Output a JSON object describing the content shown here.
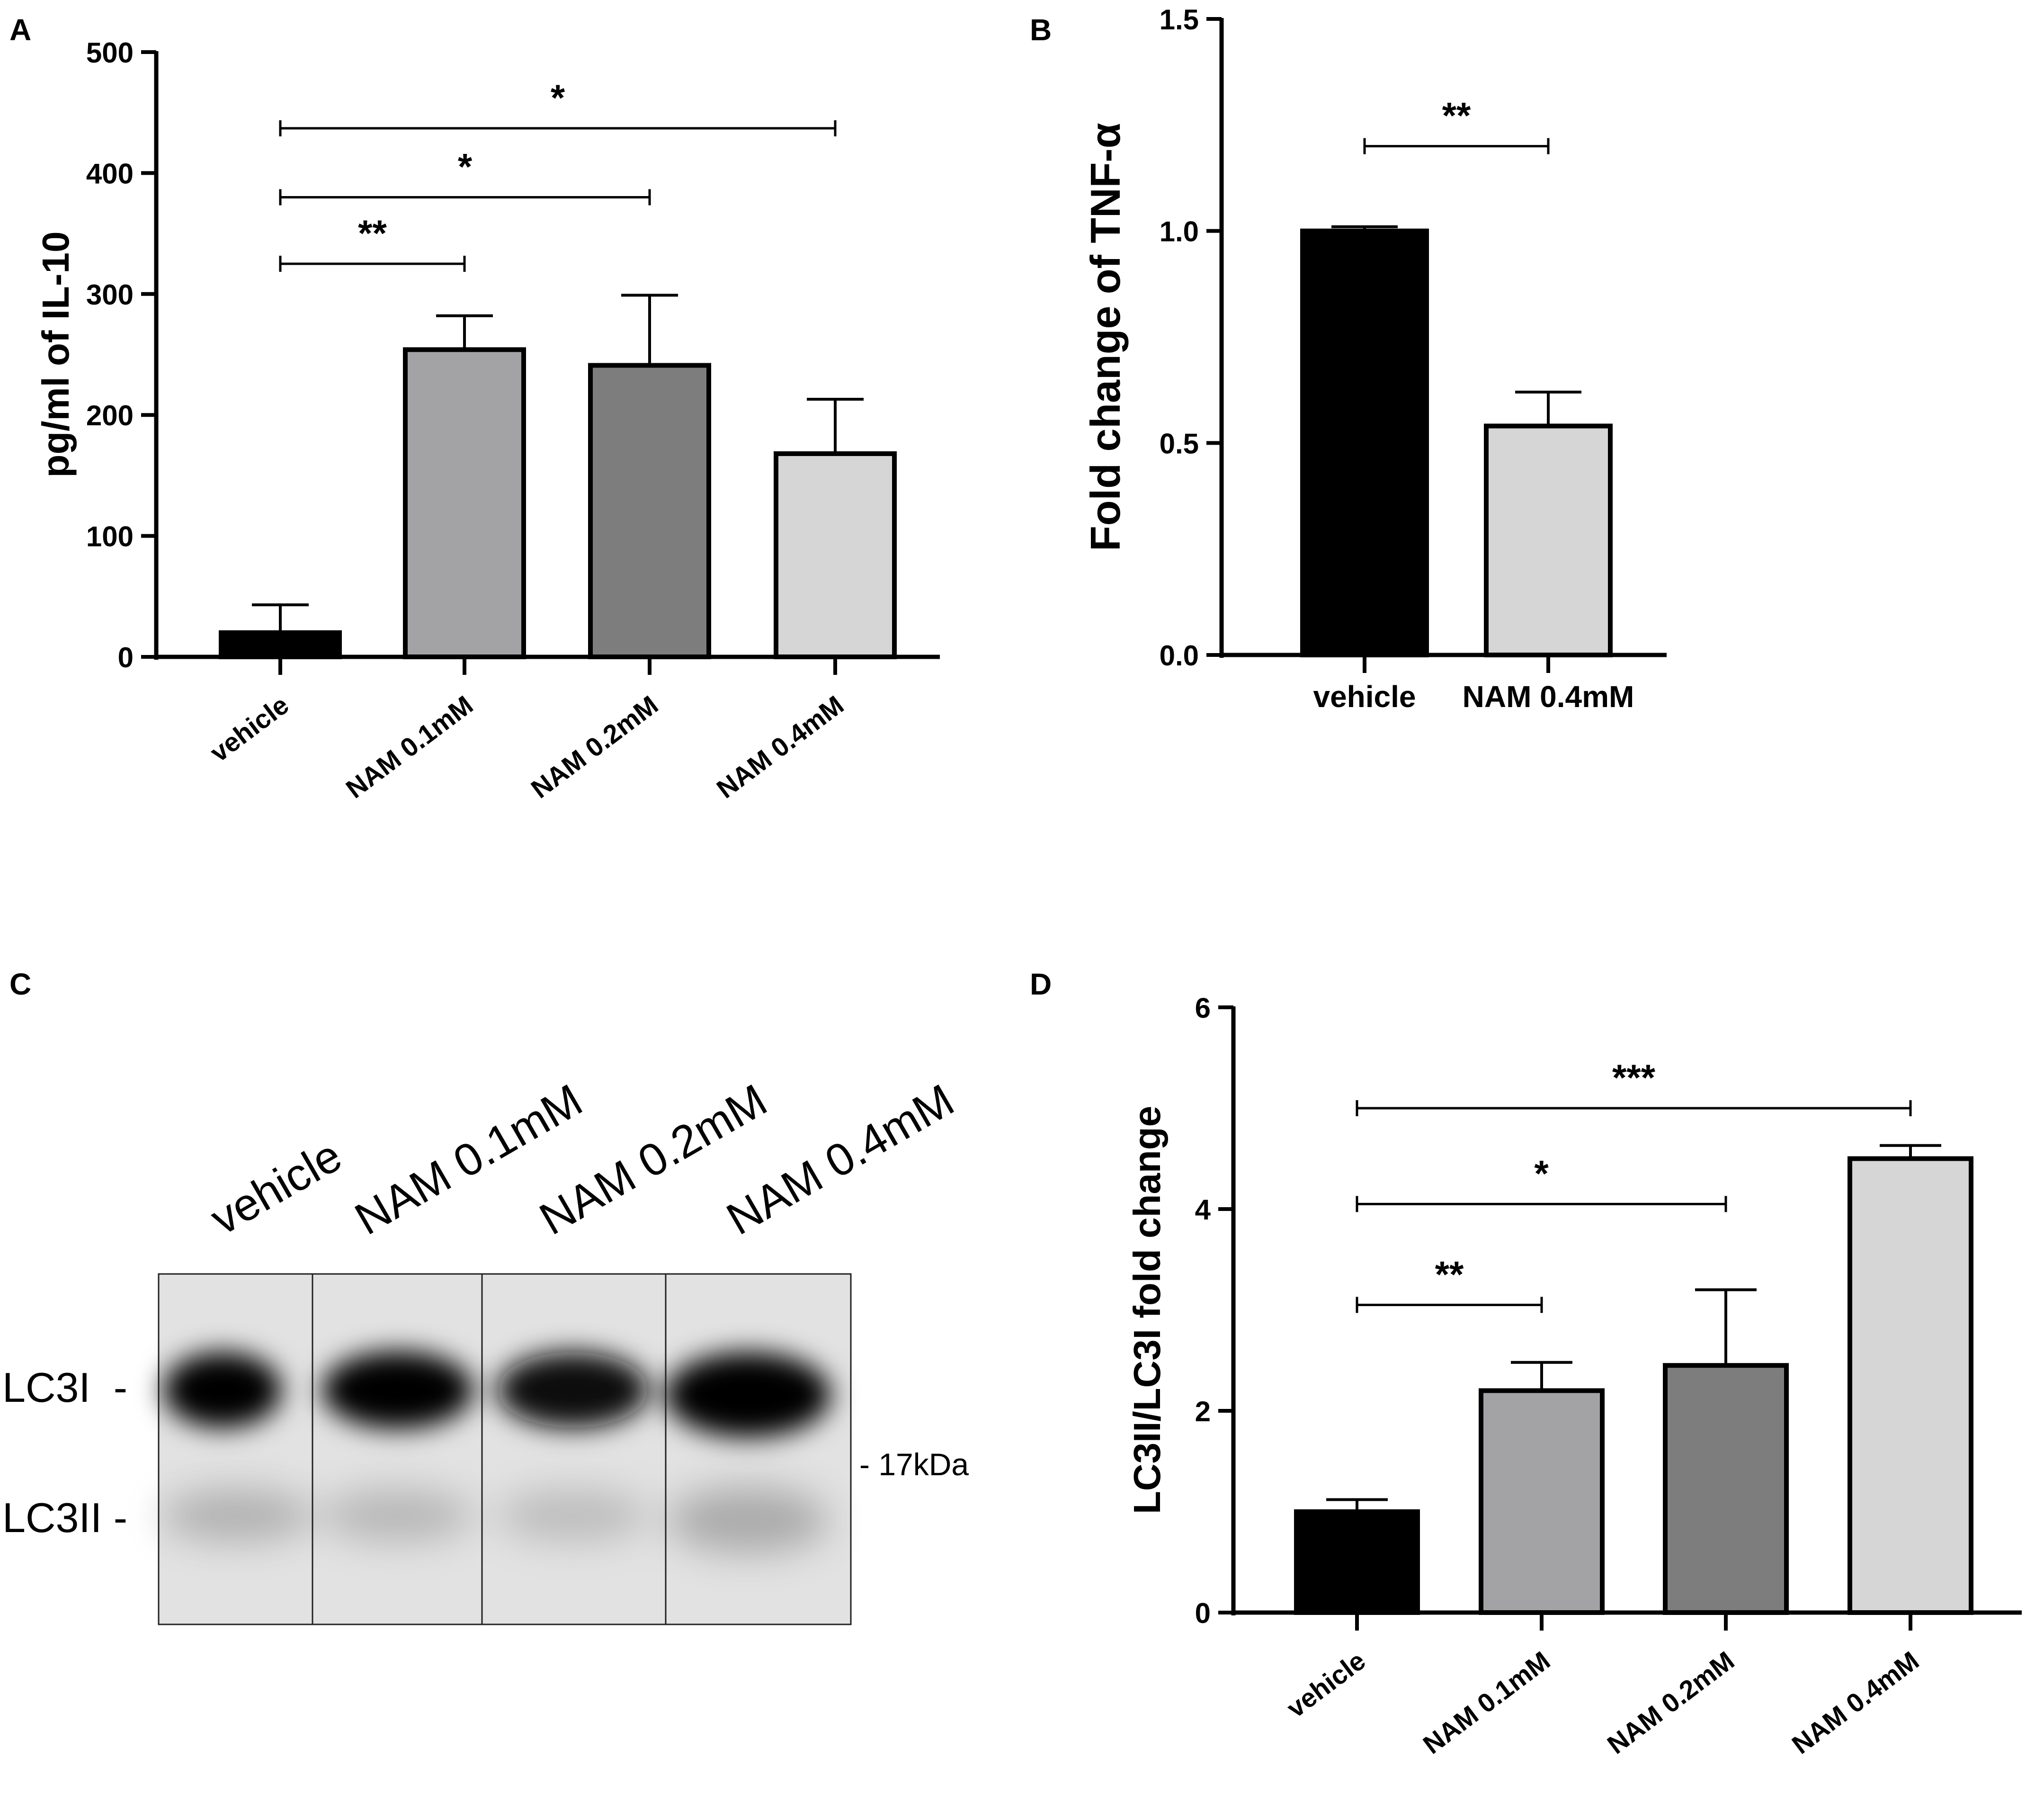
{
  "panels": {
    "A": {
      "label": "A"
    },
    "B": {
      "label": "B"
    },
    "C": {
      "label": "C"
    },
    "D": {
      "label": "D"
    }
  },
  "blot": {
    "lanes": [
      "vehicle",
      "NAM 0.1mM",
      "NAM 0.2mM",
      "NAM 0.4mM"
    ],
    "band_labels": [
      "LC3I  -",
      "LC3II -"
    ],
    "marker": "- 17kDa"
  },
  "chart_data": [
    {
      "panel": "A",
      "type": "bar",
      "categories": [
        "vehicle",
        "NAM 0.1mM",
        "NAM 0.2mM",
        "NAM 0.4mM"
      ],
      "values": [
        20,
        254,
        241,
        168
      ],
      "errors": [
        23,
        28,
        58,
        45
      ],
      "colors": [
        "#000000",
        "#a3a3a6",
        "#7d7d7d",
        "#d6d6d6"
      ],
      "ylabel": "pg/ml of IL-10",
      "ylim": [
        0,
        500
      ],
      "yticks": [
        0,
        100,
        200,
        300,
        400,
        500
      ],
      "grid": false,
      "significance": [
        {
          "from": 0,
          "to": 1,
          "label": "**",
          "y": 325
        },
        {
          "from": 0,
          "to": 2,
          "label": "*",
          "y": 380
        },
        {
          "from": 0,
          "to": 3,
          "label": "*",
          "y": 437
        }
      ]
    },
    {
      "panel": "B",
      "type": "bar",
      "categories": [
        "vehicle",
        "NAM 0.4mM"
      ],
      "values": [
        1.0,
        0.54
      ],
      "errors": [
        0.01,
        0.08
      ],
      "colors": [
        "#000000",
        "#d6d6d6"
      ],
      "ylabel": "Fold change of TNF-α",
      "ylim": [
        0,
        1.5
      ],
      "yticks": [
        "0.0",
        "0.5",
        "1.0",
        "1.5"
      ],
      "grid": false,
      "significance": [
        {
          "from": 0,
          "to": 1,
          "label": "**",
          "y": 1.2
        }
      ]
    },
    {
      "panel": "D",
      "type": "bar",
      "categories": [
        "vehicle",
        "NAM 0.1mM",
        "NAM 0.2mM",
        "NAM 0.4mM"
      ],
      "values": [
        1.0,
        2.2,
        2.45,
        4.5
      ],
      "errors": [
        0.12,
        0.28,
        0.75,
        0.13
      ],
      "colors": [
        "#000000",
        "#a3a3a6",
        "#7d7d7d",
        "#d6d6d6"
      ],
      "ylabel": "LC3II/LC3I fold change",
      "ylim": [
        0,
        6
      ],
      "yticks": [
        0,
        2,
        4,
        6
      ],
      "grid": false,
      "significance": [
        {
          "from": 0,
          "to": 1,
          "label": "**",
          "y": 3.05
        },
        {
          "from": 0,
          "to": 2,
          "label": "*",
          "y": 4.05
        },
        {
          "from": 0,
          "to": 3,
          "label": "***",
          "y": 5.0
        }
      ]
    }
  ]
}
